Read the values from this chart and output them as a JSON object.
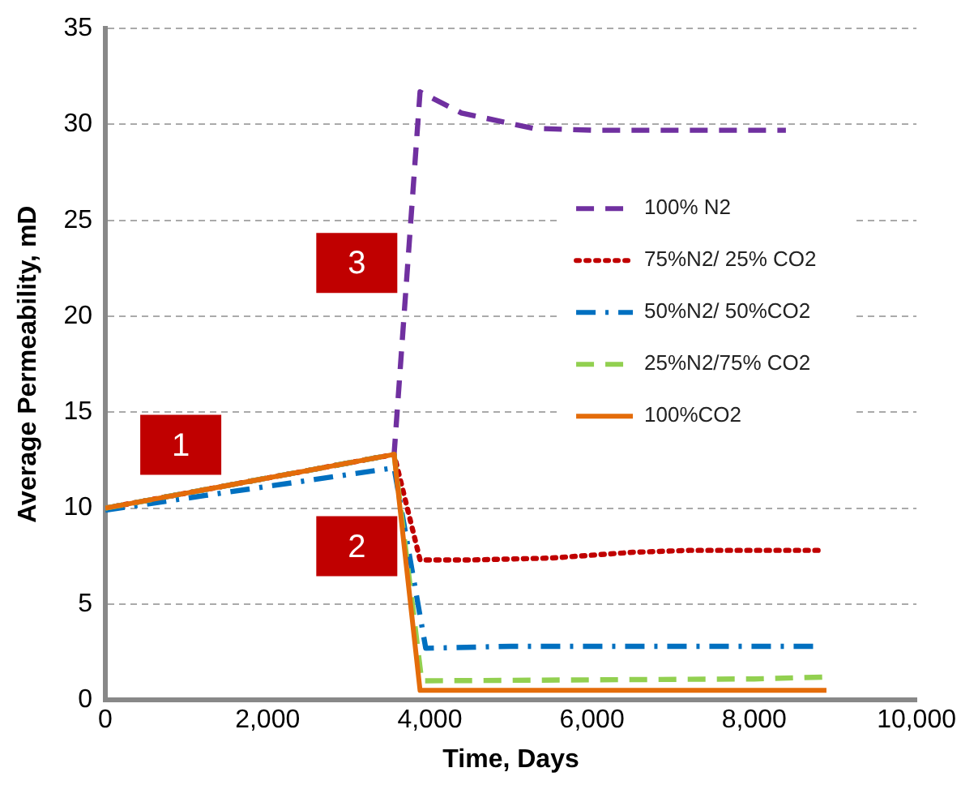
{
  "chart_data": {
    "type": "line",
    "xlabel": "Time, Days",
    "ylabel": "Average Permeability, mD",
    "xlim": [
      0,
      10000
    ],
    "xticks": [
      0,
      {
        "value": 2000,
        "label": "2,000"
      },
      {
        "value": 4000,
        "label": "4,000"
      },
      {
        "value": 6000,
        "label": "6,000"
      },
      {
        "value": 8000,
        "label": "8,000"
      },
      {
        "value": 10000,
        "label": "10,000"
      }
    ],
    "ylim": [
      0,
      35
    ],
    "yticks": [
      0,
      5,
      10,
      15,
      20,
      25,
      30,
      35
    ],
    "grid": "y",
    "legend": "right",
    "marker": "none",
    "series": [
      {
        "name": "100% N2",
        "color": "#7030a0",
        "line_style": "dashed",
        "x": [
          0,
          3560,
          3880,
          4390,
          5270,
          6000,
          8390
        ],
        "values": [
          10,
          12.8,
          31.7,
          30.6,
          29.8,
          29.7,
          29.7
        ]
      },
      {
        "name": "75%N2/ 25% CO2",
        "color": "#c00000",
        "line_style": "dotted",
        "x": [
          0,
          3560,
          3880,
          4500,
          5500,
          6500,
          7200,
          8810
        ],
        "values": [
          10,
          12.8,
          7.3,
          7.3,
          7.4,
          7.7,
          7.8,
          7.8
        ]
      },
      {
        "name": "50%N2/ 50%CO2",
        "color": "#0070c0",
        "line_style": "dashdot",
        "x": [
          0,
          3560,
          3950,
          5000,
          6000,
          8750
        ],
        "values": [
          9.9,
          12.1,
          2.7,
          2.8,
          2.8,
          2.8
        ]
      },
      {
        "name": "25%N2/75% CO2",
        "color": "#92d050",
        "line_style": "dashed",
        "x": [
          0,
          3560,
          3900,
          8000,
          8890
        ],
        "values": [
          10,
          12.8,
          1.0,
          1.1,
          1.2
        ]
      },
      {
        "name": "100%CO2",
        "color": "#e46c0a",
        "line_style": "solid",
        "x": [
          0,
          3560,
          3880,
          8890
        ],
        "values": [
          10,
          12.8,
          0.5,
          0.5
        ]
      }
    ],
    "annotations": [
      "1",
      "2",
      "3"
    ]
  }
}
